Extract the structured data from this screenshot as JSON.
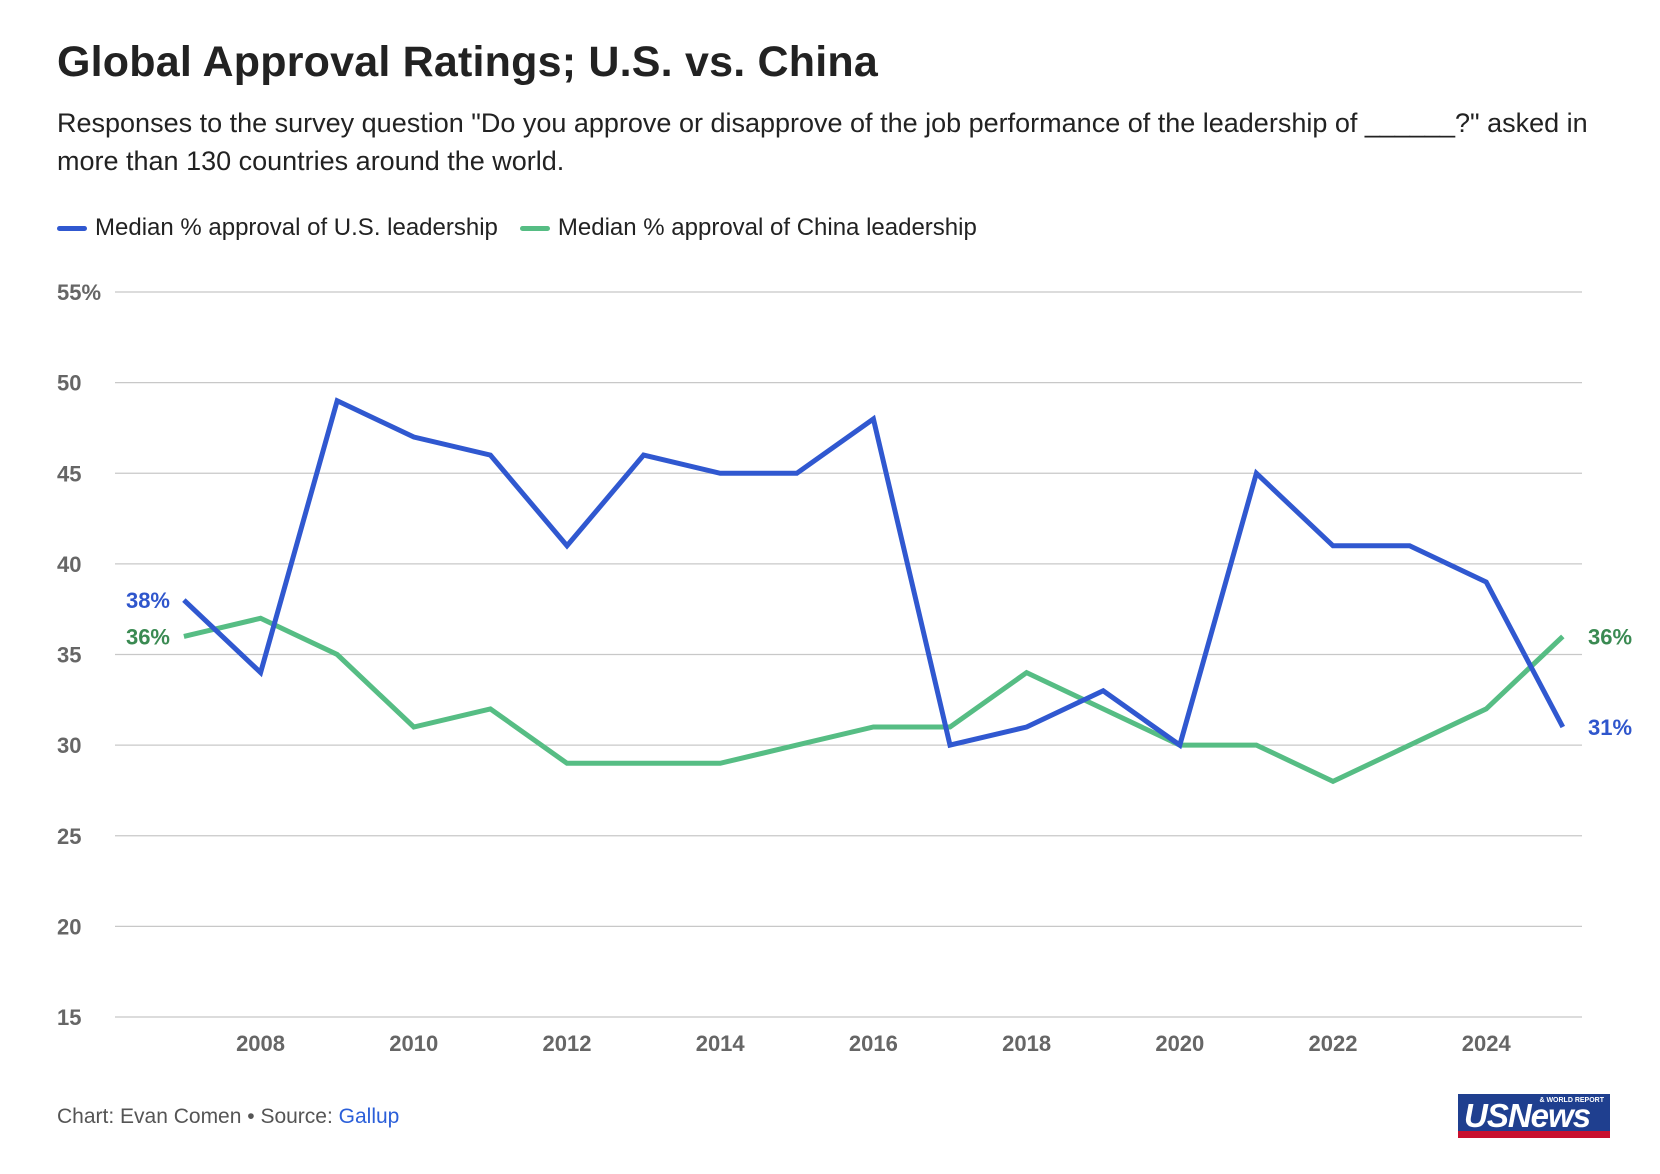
{
  "title": "Global Approval Ratings; U.S. vs. China",
  "subtitle": "Responses to the survey question \"Do you approve or disapprove of the job performance of the leadership of ______?\" asked in more than 130 countries around the world.",
  "footer": {
    "credit": "Chart: Evan Comen • Source: ",
    "source": "Gallup"
  },
  "logo": {
    "text": "USNews",
    "tagline": "& WORLD REPORT"
  },
  "colors": {
    "us": "#3058d0",
    "china": "#56bd84",
    "us_label": "#2f56cc",
    "china_label": "#3a8a52",
    "grid": "#c8c8c8"
  },
  "chart_data": {
    "type": "line",
    "title": "Global Approval Ratings; U.S. vs. China",
    "xlabel": "",
    "ylabel": "",
    "x": [
      2007,
      2008,
      2009,
      2010,
      2011,
      2012,
      2013,
      2014,
      2015,
      2016,
      2017,
      2018,
      2019,
      2020,
      2021,
      2022,
      2023,
      2024,
      2025
    ],
    "xlim": [
      2006.1,
      2025.25
    ],
    "ylim": [
      15,
      55
    ],
    "x_ticks": [
      2008,
      2010,
      2012,
      2014,
      2016,
      2018,
      2020,
      2022,
      2024
    ],
    "x_tick_labels": [
      "2008",
      "2010",
      "2012",
      "2014",
      "2016",
      "2018",
      "2020",
      "2022",
      "2024"
    ],
    "y_ticks": [
      15,
      20,
      25,
      30,
      35,
      40,
      45,
      50,
      55
    ],
    "y_tick_labels": [
      "15",
      "20",
      "25",
      "30",
      "35",
      "40",
      "45",
      "50",
      "55%"
    ],
    "grid": true,
    "legend_position": "top-left",
    "series": [
      {
        "name": "Median % approval of U.S. leadership",
        "key": "us",
        "values": [
          38,
          34,
          49,
          47,
          46,
          41,
          46,
          45,
          45,
          48,
          30,
          31,
          33,
          30,
          45,
          41,
          41,
          39,
          31
        ],
        "start_label": "38%",
        "end_label": "31%"
      },
      {
        "name": "Median % approval of China leadership",
        "key": "china",
        "values": [
          36,
          37,
          35,
          31,
          32,
          29,
          29,
          29,
          30,
          31,
          31,
          34,
          32,
          30,
          30,
          28,
          30,
          32,
          36
        ],
        "start_label": "36%",
        "end_label": "36%"
      }
    ]
  }
}
